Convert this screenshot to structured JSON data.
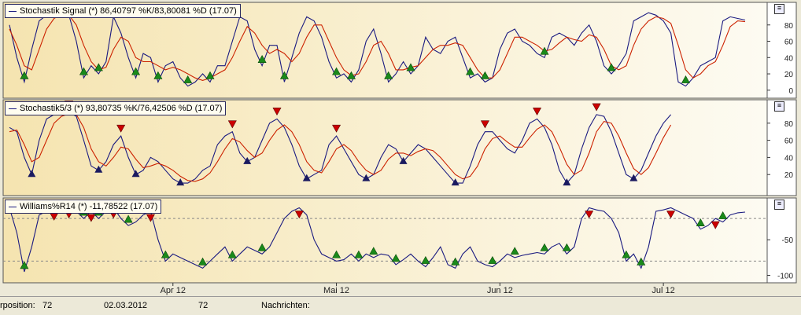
{
  "window_title": "",
  "panels": [
    {
      "id": "p1",
      "legend": "Stochastik Signal (*) 86,40797 %K/83,80081 %D (17.07)",
      "y_ticks": [
        "80",
        "60",
        "40",
        "20",
        "0"
      ],
      "y_tick_values": [
        80,
        60,
        40,
        20,
        0
      ],
      "ymin": -5,
      "ymax": 100
    },
    {
      "id": "p2",
      "legend": "Stochastik5/3 (*) 93,80735 %K/76,42506 %D (17.07)",
      "y_ticks": [
        "80",
        "60",
        "40",
        "20"
      ],
      "y_tick_values": [
        80,
        60,
        40,
        20
      ],
      "ymin": 0,
      "ymax": 100
    },
    {
      "id": "p3",
      "legend": "Williams%R14 (*) -11,78522 (17.07)",
      "y_ticks": [
        "-50",
        "-100"
      ],
      "y_tick_values": [
        -50,
        -100
      ],
      "ymin": -105,
      "ymax": 0,
      "ref_lines": [
        -20,
        -80
      ]
    }
  ],
  "x_axis": {
    "labels": [
      "Apr 12",
      "Mai 12",
      "Jun 12",
      "Jul 12"
    ],
    "label_index": [
      22,
      44,
      66,
      88
    ]
  },
  "status": {
    "label1": "rposition:",
    "value1": "72",
    "date": "02.03.2012",
    "value2": "72",
    "label2": "Nachrichten:",
    "value3": ""
  },
  "colors": {
    "line_k": "#1a1a80",
    "line_d": "#cc2200",
    "buy": "#1a8a1a",
    "sell": "#cc0000",
    "bg_left": "#f5e4b0",
    "bg_right": "#fdfbf2"
  },
  "chart_data": [
    {
      "type": "line",
      "title": "Stochastik Signal (*) 86,40797 %K/83,80081 %D (17.07)",
      "x_count": 100,
      "series": [
        {
          "name": "%K",
          "values": [
            80,
            40,
            10,
            50,
            85,
            92,
            94,
            95,
            92,
            60,
            15,
            30,
            20,
            35,
            90,
            70,
            40,
            15,
            45,
            40,
            10,
            30,
            35,
            15,
            5,
            10,
            20,
            10,
            30,
            30,
            60,
            90,
            85,
            50,
            30,
            55,
            55,
            10,
            40,
            70,
            90,
            85,
            65,
            35,
            15,
            20,
            10,
            25,
            60,
            75,
            45,
            10,
            20,
            35,
            20,
            30,
            65,
            50,
            45,
            60,
            65,
            40,
            15,
            20,
            10,
            15,
            50,
            70,
            75,
            60,
            55,
            45,
            40,
            65,
            70,
            65,
            55,
            70,
            80,
            60,
            30,
            20,
            30,
            45,
            85,
            90,
            95,
            92,
            85,
            70,
            10,
            5,
            15,
            30,
            35,
            40,
            85,
            90,
            88,
            86
          ]
        },
        {
          "name": "%D",
          "values": [
            75,
            55,
            30,
            25,
            50,
            75,
            88,
            93,
            92,
            80,
            55,
            35,
            25,
            28,
            50,
            65,
            60,
            40,
            35,
            35,
            30,
            25,
            28,
            25,
            20,
            15,
            12,
            15,
            20,
            25,
            40,
            60,
            78,
            70,
            55,
            45,
            50,
            45,
            35,
            45,
            65,
            80,
            80,
            60,
            40,
            25,
            18,
            20,
            35,
            55,
            60,
            45,
            25,
            25,
            28,
            30,
            40,
            50,
            55,
            55,
            58,
            55,
            40,
            25,
            15,
            15,
            25,
            45,
            65,
            65,
            60,
            55,
            48,
            50,
            58,
            65,
            62,
            60,
            68,
            65,
            50,
            30,
            25,
            30,
            55,
            75,
            85,
            90,
            88,
            82,
            55,
            25,
            15,
            20,
            30,
            35,
            55,
            78,
            85,
            84
          ]
        }
      ],
      "ylim": [
        -5,
        100
      ]
    },
    {
      "type": "line",
      "title": "Stochastik5/3 (*) 93,80735 %K/76,42506 %D (17.07)",
      "x_count": 100,
      "series": [
        {
          "name": "%K",
          "values": [
            75,
            70,
            40,
            20,
            60,
            85,
            90,
            92,
            93,
            88,
            60,
            30,
            25,
            35,
            55,
            65,
            40,
            20,
            25,
            40,
            35,
            25,
            15,
            10,
            10,
            15,
            25,
            30,
            55,
            65,
            70,
            45,
            35,
            40,
            60,
            80,
            85,
            75,
            55,
            30,
            15,
            20,
            25,
            55,
            65,
            50,
            35,
            20,
            15,
            20,
            40,
            55,
            50,
            35,
            45,
            55,
            50,
            40,
            30,
            20,
            10,
            10,
            30,
            55,
            70,
            70,
            60,
            50,
            45,
            60,
            80,
            85,
            75,
            55,
            25,
            10,
            20,
            50,
            75,
            90,
            88,
            70,
            45,
            20,
            15,
            25,
            45,
            65,
            80,
            90
          ]
        },
        {
          "name": "%D",
          "values": [
            70,
            72,
            55,
            35,
            40,
            60,
            80,
            88,
            91,
            90,
            75,
            50,
            35,
            30,
            40,
            52,
            50,
            38,
            28,
            30,
            33,
            30,
            25,
            18,
            13,
            12,
            15,
            22,
            35,
            50,
            62,
            58,
            48,
            40,
            45,
            60,
            72,
            78,
            70,
            55,
            35,
            25,
            22,
            35,
            50,
            55,
            48,
            35,
            25,
            20,
            25,
            38,
            45,
            45,
            42,
            47,
            50,
            48,
            40,
            30,
            20,
            15,
            18,
            30,
            50,
            62,
            65,
            58,
            52,
            52,
            63,
            73,
            78,
            70,
            52,
            32,
            20,
            25,
            45,
            70,
            82,
            80,
            65,
            45,
            27,
            20,
            28,
            45,
            63,
            78
          ]
        }
      ],
      "ylim": [
        0,
        100
      ]
    },
    {
      "type": "line",
      "title": "Williams%R14 (*) -11,78522 (17.07)",
      "x_count": 100,
      "series": [
        {
          "name": "Williams%R14",
          "values": [
            -5,
            -40,
            -95,
            -60,
            -15,
            -10,
            -8,
            -12,
            -5,
            -10,
            -20,
            -10,
            -20,
            -10,
            -5,
            -20,
            -30,
            -25,
            -15,
            -10,
            -50,
            -80,
            -70,
            -75,
            -80,
            -85,
            -90,
            -80,
            -70,
            -60,
            -80,
            -70,
            -60,
            -65,
            -70,
            -60,
            -40,
            -20,
            -10,
            -5,
            -15,
            -50,
            -70,
            -75,
            -80,
            -78,
            -70,
            -80,
            -70,
            -75,
            -70,
            -72,
            -85,
            -78,
            -70,
            -80,
            -88,
            -75,
            -60,
            -85,
            -90,
            -70,
            -60,
            -80,
            -85,
            -88,
            -80,
            -70,
            -75,
            -72,
            -70,
            -68,
            -70,
            -60,
            -55,
            -70,
            -60,
            -20,
            -5,
            -8,
            -10,
            -20,
            -40,
            -80,
            -70,
            -90,
            -60,
            -10,
            -8,
            -5,
            -10,
            -15,
            -20,
            -35,
            -30,
            -20,
            -25,
            -15,
            -12,
            -11
          ]
        }
      ],
      "ylim": [
        -105,
        0
      ]
    }
  ]
}
